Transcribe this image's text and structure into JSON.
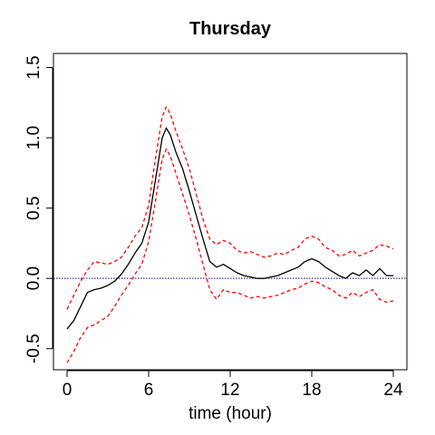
{
  "chart_data": {
    "type": "line",
    "title": "Thursday",
    "xlabel": "time (hour)",
    "ylabel": "",
    "xlim": [
      -1,
      25
    ],
    "ylim": [
      -0.65,
      1.6
    ],
    "x_ticks": [
      0,
      6,
      12,
      18,
      24
    ],
    "x_tick_labels": [
      "0",
      "6",
      "12",
      "18",
      "24"
    ],
    "y_ticks": [
      -0.5,
      0.0,
      0.5,
      1.0,
      1.5
    ],
    "y_tick_labels": [
      "-0.5",
      "0.0",
      "0.5",
      "1.0",
      "1.5"
    ],
    "grid": false,
    "reference_line": {
      "y": 0,
      "color": "#00008b",
      "style": "dotted"
    },
    "series": [
      {
        "role": "estimate",
        "color": "#000000",
        "style": "solid",
        "x": [
          0,
          0.5,
          1,
          1.5,
          2,
          2.5,
          3,
          3.5,
          4,
          4.5,
          5,
          5.5,
          6,
          6.5,
          7,
          7.3,
          7.6,
          8,
          8.5,
          9,
          9.5,
          10,
          10.5,
          11,
          11.5,
          12,
          12.5,
          13,
          13.5,
          14,
          14.5,
          15,
          15.5,
          16,
          16.5,
          17,
          17.5,
          18,
          18.5,
          19,
          19.5,
          20,
          20.5,
          21,
          21.5,
          22,
          22.5,
          23,
          23.5,
          24
        ],
        "y": [
          -0.36,
          -0.3,
          -0.2,
          -0.1,
          -0.08,
          -0.07,
          -0.05,
          -0.02,
          0.03,
          0.1,
          0.18,
          0.25,
          0.4,
          0.7,
          1.0,
          1.07,
          1.02,
          0.9,
          0.78,
          0.62,
          0.45,
          0.28,
          0.12,
          0.08,
          0.1,
          0.07,
          0.04,
          0.02,
          0.01,
          0.0,
          0.0,
          0.01,
          0.02,
          0.04,
          0.06,
          0.08,
          0.12,
          0.14,
          0.12,
          0.08,
          0.05,
          0.02,
          0.0,
          0.04,
          0.02,
          0.06,
          0.02,
          0.07,
          0.02,
          0.02
        ]
      },
      {
        "role": "upper-band",
        "color": "#ff0000",
        "style": "dashed",
        "x": [
          0,
          0.5,
          1,
          1.5,
          2,
          2.5,
          3,
          3.5,
          4,
          4.5,
          5,
          5.5,
          6,
          6.5,
          7,
          7.3,
          7.6,
          8,
          8.5,
          9,
          9.5,
          10,
          10.5,
          11,
          11.5,
          12,
          12.5,
          13,
          13.5,
          14,
          14.5,
          15,
          15.5,
          16,
          16.5,
          17,
          17.5,
          18,
          18.5,
          19,
          19.5,
          20,
          20.5,
          21,
          21.5,
          22,
          22.5,
          23,
          23.5,
          24
        ],
        "y": [
          -0.22,
          -0.12,
          -0.02,
          0.06,
          0.12,
          0.11,
          0.1,
          0.12,
          0.15,
          0.22,
          0.3,
          0.36,
          0.52,
          0.85,
          1.15,
          1.22,
          1.17,
          1.05,
          0.92,
          0.78,
          0.6,
          0.42,
          0.28,
          0.24,
          0.27,
          0.25,
          0.2,
          0.18,
          0.19,
          0.17,
          0.15,
          0.16,
          0.18,
          0.17,
          0.2,
          0.22,
          0.28,
          0.3,
          0.28,
          0.22,
          0.2,
          0.16,
          0.17,
          0.2,
          0.16,
          0.18,
          0.2,
          0.24,
          0.23,
          0.21
        ]
      },
      {
        "role": "lower-band",
        "color": "#ff0000",
        "style": "dashed",
        "x": [
          0,
          0.5,
          1,
          1.5,
          2,
          2.5,
          3,
          3.5,
          4,
          4.5,
          5,
          5.5,
          6,
          6.5,
          7,
          7.3,
          7.6,
          8,
          8.5,
          9,
          9.5,
          10,
          10.5,
          11,
          11.5,
          12,
          12.5,
          13,
          13.5,
          14,
          14.5,
          15,
          15.5,
          16,
          16.5,
          17,
          17.5,
          18,
          18.5,
          19,
          19.5,
          20,
          20.5,
          21,
          21.5,
          22,
          22.5,
          23,
          23.5,
          24
        ],
        "y": [
          -0.6,
          -0.52,
          -0.42,
          -0.35,
          -0.33,
          -0.3,
          -0.27,
          -0.2,
          -0.12,
          -0.05,
          0.03,
          0.1,
          0.26,
          0.55,
          0.85,
          0.92,
          0.87,
          0.75,
          0.6,
          0.45,
          0.28,
          0.1,
          -0.08,
          -0.15,
          -0.08,
          -0.1,
          -0.1,
          -0.12,
          -0.14,
          -0.13,
          -0.14,
          -0.13,
          -0.12,
          -0.1,
          -0.08,
          -0.07,
          -0.04,
          -0.02,
          -0.03,
          -0.06,
          -0.08,
          -0.12,
          -0.14,
          -0.1,
          -0.13,
          -0.1,
          -0.08,
          -0.15,
          -0.17,
          -0.16
        ]
      }
    ]
  }
}
